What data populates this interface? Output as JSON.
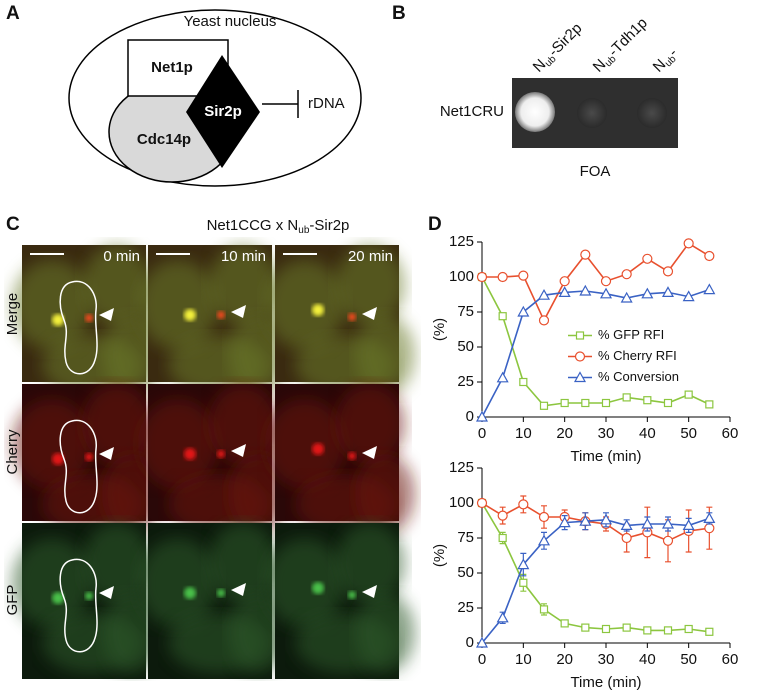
{
  "panels": {
    "A": {
      "label": "A",
      "nucleus": "Yeast nucleus",
      "proteins": [
        "Net1p",
        "Cdc14p",
        "Sir2p"
      ],
      "target": "rDNA"
    },
    "B": {
      "label": "B",
      "columns": [
        {
          "n": "N",
          "sub": "ub",
          "rest": "-Sir2p"
        },
        {
          "n": "N",
          "sub": "ub",
          "rest": "-Tdh1p"
        },
        {
          "n": "N",
          "sub": "ub",
          "rest": "-"
        }
      ],
      "row": "Net1CRU",
      "plate": "FOA"
    },
    "C": {
      "label": "C",
      "title": {
        "pre": "Net1CCG x N",
        "sub": "ub",
        "rest": "-Sir2p"
      },
      "times": [
        "0 min",
        "10 min",
        "20 min"
      ],
      "rows": [
        "Merge",
        "Cherry",
        "GFP"
      ]
    },
    "D": {
      "label": "D"
    }
  },
  "chart_data": [
    {
      "type": "line",
      "xlabel": "Time (min)",
      "ylabel": "(%)",
      "x": [
        0,
        5,
        10,
        15,
        20,
        25,
        30,
        35,
        40,
        45,
        50,
        55
      ],
      "xlim": [
        0,
        60
      ],
      "xticks": [
        0,
        10,
        20,
        30,
        40,
        50,
        60
      ],
      "ylim": [
        0,
        125
      ],
      "yticks": [
        0,
        25,
        50,
        75,
        100,
        125
      ],
      "legend": "center",
      "series": [
        {
          "name": "% GFP RFI",
          "color": "#8cc63f",
          "marker": "square",
          "values": [
            100,
            72,
            25,
            8,
            10,
            10,
            10,
            14,
            12,
            10,
            16,
            9
          ]
        },
        {
          "name": "% Cherry RFI",
          "color": "#e8502e",
          "marker": "circle",
          "values": [
            100,
            100,
            101,
            69,
            97,
            116,
            97,
            102,
            113,
            104,
            124,
            115
          ]
        },
        {
          "name": "% Conversion",
          "color": "#3a62c4",
          "marker": "triangle",
          "values": [
            0,
            28,
            75,
            87,
            89,
            90,
            88,
            85,
            88,
            89,
            86,
            91
          ]
        }
      ]
    },
    {
      "type": "line",
      "xlabel": "Time (min)",
      "ylabel": "(%)",
      "x": [
        0,
        5,
        10,
        15,
        20,
        25,
        30,
        35,
        40,
        45,
        50,
        55
      ],
      "xlim": [
        0,
        60
      ],
      "xticks": [
        0,
        10,
        20,
        30,
        40,
        50,
        60
      ],
      "ylim": [
        0,
        125
      ],
      "yticks": [
        0,
        25,
        50,
        75,
        100,
        125
      ],
      "series": [
        {
          "color": "#8cc63f",
          "marker": "square",
          "values": [
            100,
            75,
            43,
            24,
            14,
            11,
            10,
            11,
            9,
            9,
            10,
            8
          ],
          "errors": [
            0,
            4,
            6,
            4,
            2,
            2,
            2,
            2,
            1,
            1,
            1,
            1
          ]
        },
        {
          "color": "#e8502e",
          "marker": "circle",
          "values": [
            100,
            91,
            99,
            90,
            90,
            87,
            85,
            75,
            79,
            73,
            80,
            82
          ],
          "errors": [
            0,
            6,
            6,
            8,
            5,
            6,
            5,
            10,
            18,
            15,
            15,
            15
          ]
        },
        {
          "color": "#3a62c4",
          "marker": "triangle",
          "values": [
            0,
            18,
            56,
            73,
            86,
            87,
            88,
            84,
            85,
            85,
            84,
            89
          ],
          "errors": [
            0,
            4,
            8,
            6,
            5,
            6,
            5,
            4,
            5,
            5,
            5,
            4
          ]
        }
      ]
    }
  ]
}
